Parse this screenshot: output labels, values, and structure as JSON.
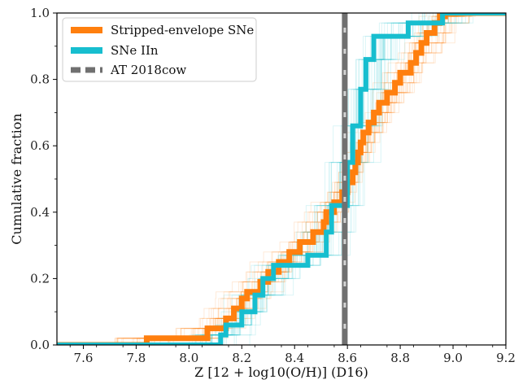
{
  "chart_data": {
    "type": "line",
    "step": true,
    "xlabel": "Z [12 + log10(O/H)] (D16)",
    "ylabel": "Cumulative fraction",
    "xlim": [
      7.5,
      9.2
    ],
    "ylim": [
      0.0,
      1.0
    ],
    "x_ticks": [
      "7.6",
      "7.8",
      "8.0",
      "8.2",
      "8.4",
      "8.6",
      "8.8",
      "9.0",
      "9.2"
    ],
    "y_ticks": [
      "0.0",
      "0.2",
      "0.4",
      "0.6",
      "0.8",
      "1.0"
    ],
    "grid": false,
    "legend_position": "top-left",
    "series": [
      {
        "name": "Stripped-envelope SNe",
        "color": "#ff7f0e",
        "style": "step",
        "x": [
          7.84,
          8.07,
          8.14,
          8.17,
          8.2,
          8.22,
          8.27,
          8.3,
          8.34,
          8.38,
          8.42,
          8.47,
          8.51,
          8.52,
          8.55,
          8.58,
          8.6,
          8.62,
          8.63,
          8.64,
          8.65,
          8.66,
          8.68,
          8.7,
          8.72,
          8.75,
          8.78,
          8.8,
          8.84,
          8.86,
          8.88,
          8.9,
          8.93,
          8.95,
          8.97
        ],
        "y": [
          0.02,
          0.05,
          0.08,
          0.11,
          0.14,
          0.16,
          0.19,
          0.22,
          0.25,
          0.28,
          0.31,
          0.34,
          0.37,
          0.4,
          0.43,
          0.46,
          0.49,
          0.52,
          0.55,
          0.58,
          0.61,
          0.64,
          0.67,
          0.7,
          0.73,
          0.76,
          0.79,
          0.82,
          0.85,
          0.88,
          0.91,
          0.94,
          0.97,
          0.99,
          1.0
        ]
      },
      {
        "name": "SNe IIn",
        "color": "#17becf",
        "style": "step",
        "x": [
          8.12,
          8.14,
          8.2,
          8.25,
          8.28,
          8.32,
          8.45,
          8.52,
          8.54,
          8.6,
          8.62,
          8.65,
          8.67,
          8.7,
          8.83,
          8.96
        ],
        "y": [
          0.03,
          0.06,
          0.1,
          0.15,
          0.2,
          0.24,
          0.27,
          0.34,
          0.42,
          0.55,
          0.66,
          0.77,
          0.86,
          0.93,
          0.97,
          1.0
        ]
      },
      {
        "name": "AT 2018cow",
        "color": "#707070",
        "style": "vline",
        "x": [
          8.59
        ]
      }
    ]
  }
}
